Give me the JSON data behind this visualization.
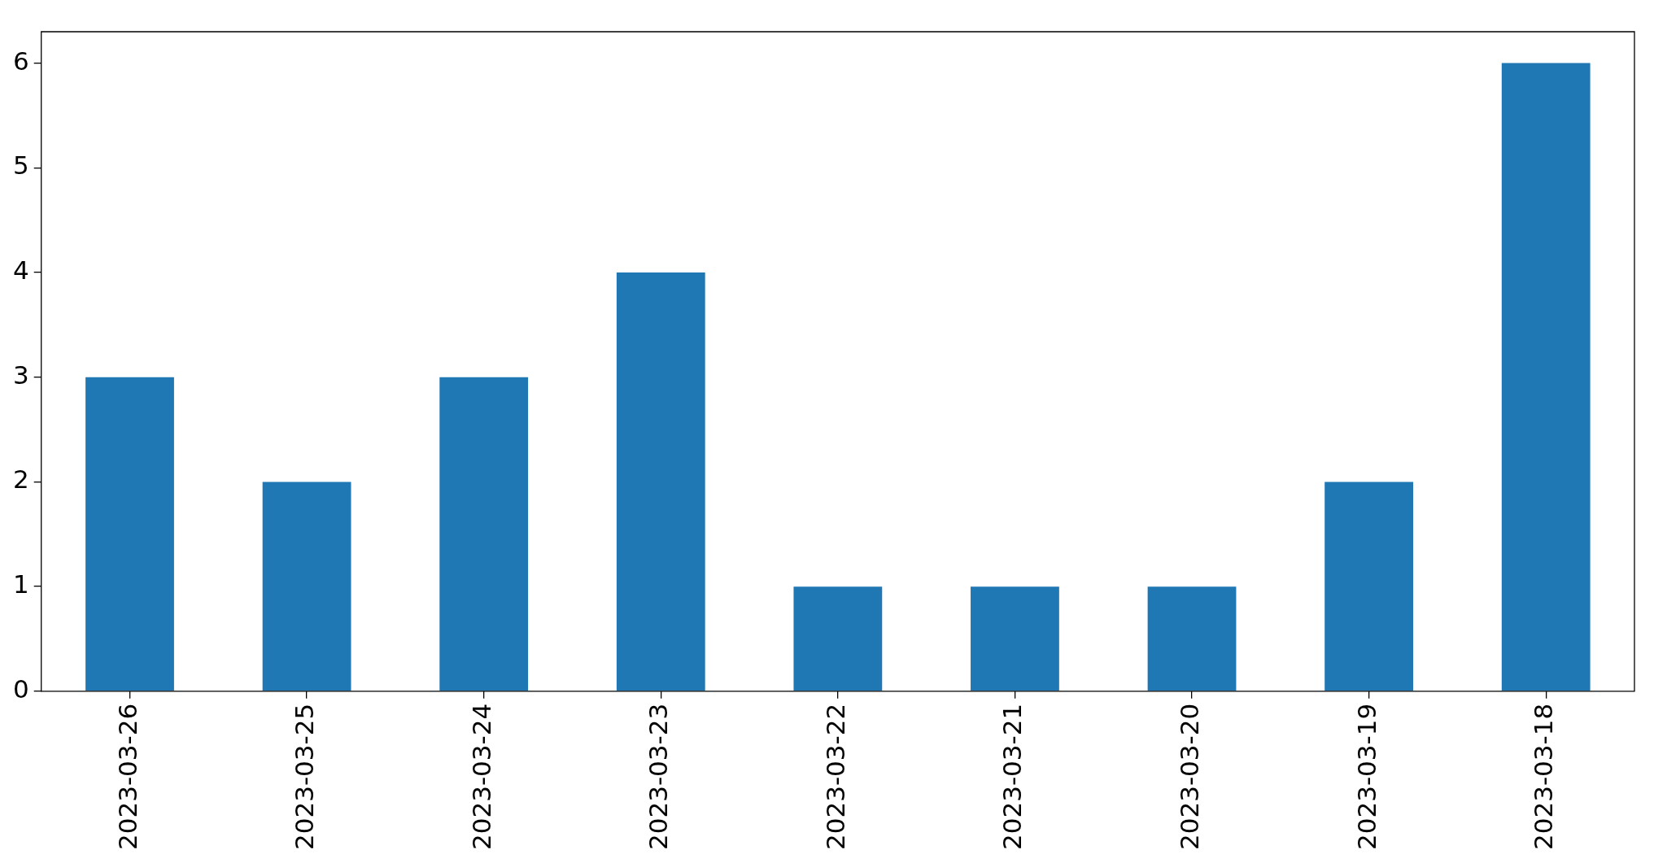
{
  "chart_data": {
    "type": "bar",
    "categories": [
      "2023-03-26",
      "2023-03-25",
      "2023-03-24",
      "2023-03-23",
      "2023-03-22",
      "2023-03-21",
      "2023-03-20",
      "2023-03-19",
      "2023-03-18"
    ],
    "values": [
      3,
      2,
      3,
      4,
      1,
      1,
      1,
      2,
      6
    ],
    "color": "#1f77b4",
    "ylim": [
      0,
      6.3
    ],
    "yticks": [
      0,
      1,
      2,
      3,
      4,
      5,
      6
    ]
  }
}
